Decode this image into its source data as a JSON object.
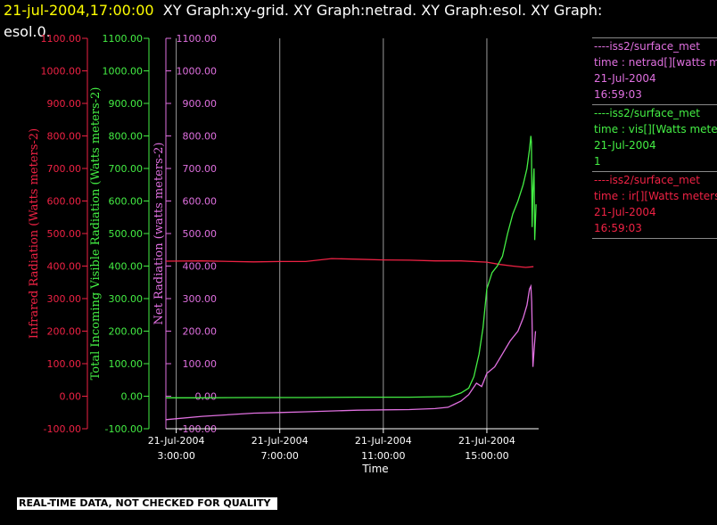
{
  "header": {
    "timestamp": "21-jul-2004,17:00:00",
    "titles_line1": "XY Graph:xy-grid.  XY Graph:netrad.  XY Graph:esol.  XY Graph:",
    "titles_line2": "esol.0."
  },
  "legend": [
    {
      "source": "----iss2/surface_met",
      "var": "time : netrad[][watts me",
      "date": "21-Jul-2004",
      "time": "16:59:03",
      "color": "#e070e0"
    },
    {
      "source": "----iss2/surface_met",
      "var": "time : vis[][Watts meter",
      "date": "21-Jul-2004",
      "time": "1",
      "color": "#44ee44"
    },
    {
      "source": "----iss2/surface_met",
      "var": "time : ir[][Watts meters",
      "date": "21-Jul-2004",
      "time": "16:59:03",
      "color": "#ee2244"
    }
  ],
  "footer": {
    "qc_note": "REAL-TIME DATA, NOT CHECKED FOR QUALITY"
  },
  "chart_data": {
    "type": "line",
    "xlabel": "Time",
    "x_ticks": [
      {
        "value": 3,
        "date": "21-Jul-2004",
        "time": "3:00:00"
      },
      {
        "value": 7,
        "date": "21-Jul-2004",
        "time": "7:00:00"
      },
      {
        "value": 11,
        "date": "21-Jul-2004",
        "time": "11:00:00"
      },
      {
        "value": 15,
        "date": "21-Jul-2004",
        "time": "15:00:00"
      }
    ],
    "xlim": [
      2.6,
      17.0
    ],
    "ylim": [
      -100,
      1100
    ],
    "y_ticks": [
      "-100.00",
      "0.00",
      "100.00",
      "200.00",
      "300.00",
      "400.00",
      "500.00",
      "600.00",
      "700.00",
      "800.00",
      "900.00",
      "1000.00",
      "1100.00"
    ],
    "axes": [
      {
        "label": "Infrared Radiation (Watts meters-2)",
        "color": "#ee2244"
      },
      {
        "label": "Total Incoming Visible Radiation (Watts meters-2)",
        "color": "#44ee44"
      },
      {
        "label": "Net Radiation (watts meters-2)",
        "color": "#e070e0"
      }
    ],
    "grid": "vertical",
    "series": [
      {
        "color": "#ee2244",
        "points": [
          [
            2.6,
            415
          ],
          [
            4,
            416
          ],
          [
            6,
            413
          ],
          [
            7,
            414
          ],
          [
            8,
            414
          ],
          [
            9,
            423
          ],
          [
            10,
            421
          ],
          [
            11,
            419
          ],
          [
            12,
            418
          ],
          [
            13,
            416
          ],
          [
            14,
            416
          ],
          [
            15,
            412
          ],
          [
            15.5,
            405
          ],
          [
            16,
            400
          ],
          [
            16.5,
            396
          ],
          [
            16.8,
            398
          ]
        ]
      },
      {
        "color": "#44ee44",
        "points": [
          [
            2.6,
            -5
          ],
          [
            4,
            -5
          ],
          [
            6,
            -4
          ],
          [
            8,
            -4
          ],
          [
            10,
            -3
          ],
          [
            12,
            -3
          ],
          [
            13.6,
            -1
          ],
          [
            14,
            10
          ],
          [
            14.3,
            25
          ],
          [
            14.5,
            60
          ],
          [
            14.7,
            130
          ],
          [
            14.85,
            210
          ],
          [
            15,
            330
          ],
          [
            15.2,
            380
          ],
          [
            15.4,
            400
          ],
          [
            15.6,
            430
          ],
          [
            15.8,
            500
          ],
          [
            16,
            560
          ],
          [
            16.2,
            600
          ],
          [
            16.4,
            650
          ],
          [
            16.55,
            700
          ],
          [
            16.65,
            760
          ],
          [
            16.7,
            800
          ],
          [
            16.72,
            780
          ],
          [
            16.75,
            520
          ],
          [
            16.78,
            630
          ],
          [
            16.82,
            700
          ],
          [
            16.85,
            480
          ],
          [
            16.9,
            590
          ]
        ]
      },
      {
        "color": "#e070e0",
        "points": [
          [
            2.6,
            -72
          ],
          [
            4,
            -62
          ],
          [
            6,
            -52
          ],
          [
            7,
            -50
          ],
          [
            8,
            -48
          ],
          [
            10,
            -43
          ],
          [
            11,
            -42
          ],
          [
            12,
            -41
          ],
          [
            13,
            -38
          ],
          [
            13.5,
            -34
          ],
          [
            14,
            -15
          ],
          [
            14.3,
            5
          ],
          [
            14.6,
            40
          ],
          [
            14.8,
            30
          ],
          [
            15,
            70
          ],
          [
            15.3,
            90
          ],
          [
            15.6,
            130
          ],
          [
            15.9,
            170
          ],
          [
            16.2,
            200
          ],
          [
            16.4,
            240
          ],
          [
            16.55,
            280
          ],
          [
            16.65,
            330
          ],
          [
            16.7,
            338
          ],
          [
            16.73,
            290
          ],
          [
            16.78,
            90
          ],
          [
            16.83,
            150
          ],
          [
            16.88,
            200
          ]
        ]
      }
    ]
  }
}
